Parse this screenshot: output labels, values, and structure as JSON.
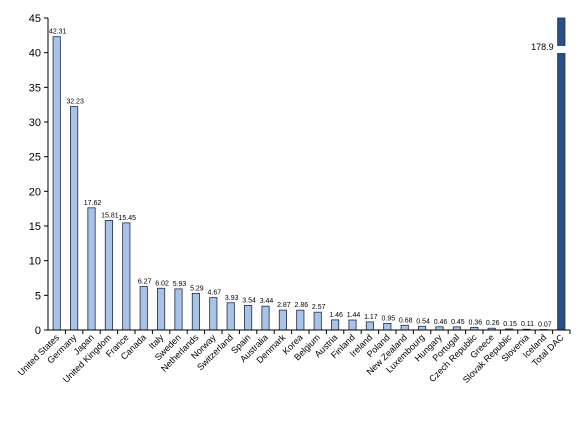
{
  "chart_data": {
    "type": "bar",
    "ylim": [
      0,
      45
    ],
    "yticks": [
      0,
      5,
      10,
      15,
      20,
      25,
      30,
      35,
      40,
      45
    ],
    "grid": false,
    "legend": "none",
    "axis_break": {
      "category": "Total DAC",
      "label": "178.9"
    },
    "colors": {
      "bar": "#a9c3e8",
      "bar_stroke": "#1f2a44",
      "total_bar": "#2a4e8a"
    },
    "categories": [
      "United States",
      "Germany",
      "Japan",
      "United Kingdom",
      "France",
      "Canada",
      "Italy",
      "Sweden",
      "Netherlands",
      "Norway",
      "Switzerland",
      "Spain",
      "Australia",
      "Denmark",
      "Korea",
      "Belgium",
      "Austria",
      "Finland",
      "Ireland",
      "Poland",
      "New Zealand",
      "Luxembourg",
      "Hungary",
      "Portugal",
      "Czech Republic",
      "Greece",
      "Slovak Republic",
      "Slovenia",
      "Iceland",
      "Total DAC"
    ],
    "values": [
      42.31,
      32.23,
      17.62,
      15.81,
      15.45,
      6.27,
      6.02,
      5.93,
      5.29,
      4.67,
      3.93,
      3.54,
      3.44,
      2.87,
      2.86,
      2.57,
      1.46,
      1.44,
      1.17,
      0.95,
      0.68,
      0.54,
      0.46,
      0.45,
      0.36,
      0.26,
      0.15,
      0.11,
      0.07,
      178.9
    ],
    "data_labels": [
      "42.31",
      "32.23",
      "17.62",
      "15.81",
      "15.45",
      "6.27",
      "6.02",
      "5.93",
      "5.29",
      "4.67",
      "3.93",
      "3.54",
      "3.44",
      "2.87",
      "2.86",
      "2.57",
      "1.46",
      "1.44",
      "1.17",
      "0.95",
      "0.68",
      "0.54",
      "0.46",
      "0.45",
      "0.36",
      "0.26",
      "0.15",
      "0.11",
      "0.07",
      ""
    ]
  }
}
